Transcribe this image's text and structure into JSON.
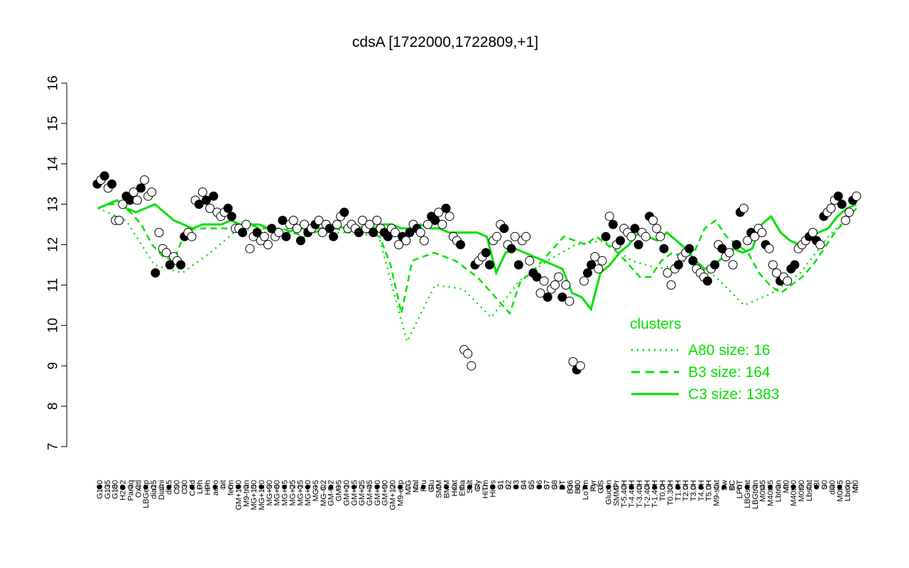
{
  "chart_data": {
    "type": "line",
    "title": "cdsA [1722000,1722809,+1]",
    "xlabel": "",
    "ylabel": "",
    "ylim": [
      7,
      16
    ],
    "yticks": [
      7,
      8,
      9,
      10,
      11,
      12,
      13,
      14,
      15,
      16
    ],
    "grid": false,
    "legend_position": "right",
    "legend": {
      "title": "clusters",
      "entries": [
        {
          "label": "A80 size: 16",
          "style": "dotted"
        },
        {
          "label": "B3 size: 164",
          "style": "dashed"
        },
        {
          "label": "C3 size: 1383",
          "style": "solid"
        }
      ]
    },
    "colors": {
      "cluster_line": "#00e000",
      "axis": "#000000",
      "point_edge": "#000000"
    },
    "category_labels": [
      "G150",
      "G135",
      "G180",
      "H2O2",
      "Paraq",
      "Oxctl",
      "LBGexp",
      "dia15",
      "Diami",
      "dia5",
      "C90",
      "C30",
      "Cold",
      "LPh",
      "HPh",
      "aero",
      "nit",
      "ferm",
      "GM+150",
      "M9-tran",
      "MG+150",
      "MG+120",
      "MG+90",
      "MG+60",
      "MG+45",
      "MG+25",
      "MG+15",
      "MG+10",
      "MG+5",
      "MG-0.2",
      "GM-0.2",
      "GM+5",
      "GM+10",
      "GM+15",
      "GM+25",
      "GM+45",
      "GM+60",
      "GM+90",
      "GM+120",
      "M9-exp",
      "M/G",
      "Mal",
      "Fru",
      "Glu",
      "SMM",
      "BMM",
      "Heat",
      "Etha",
      "Salt",
      "Gly",
      "HiTm",
      "HiOs",
      "S1",
      "S2",
      "S3",
      "S4",
      "S5",
      "S6",
      "S7",
      "S8",
      "BT",
      "B36",
      "B60",
      "LoTm",
      "Pyr",
      "G/S",
      "Glucon",
      "SMMPr",
      "T-5.40H",
      "T-4.40H",
      "T-3.40H",
      "T-2.40H",
      "T-1.40H",
      "T0.0H",
      "T0.30H",
      "T1.0H",
      "T2.0H",
      "T3.0H",
      "T4.0H",
      "T5.0H",
      "M9-stat",
      "Sw",
      "BC",
      "LPhT",
      "LBGstat",
      "LBGtran",
      "M0t45",
      "M40t45",
      "Lbtran",
      "Mt0",
      "M40t90",
      "M0t90",
      "Lbstat",
      "BI",
      "S0",
      "dia0",
      "M0t45",
      "Lbexp",
      "Mt0"
    ],
    "series": [
      {
        "type": "points",
        "values": [
          13.5,
          13.6,
          13.7,
          13.4,
          13.5,
          12.6,
          12.6,
          13.0,
          13.2,
          13.1,
          13.3,
          13.1,
          13.4,
          13.6,
          13.2,
          13.3,
          11.3,
          12.3,
          11.9,
          11.8,
          11.5,
          11.7,
          11.6,
          11.5,
          12.2,
          12.3,
          12.2,
          13.1,
          13.0,
          13.3,
          13.1,
          12.9,
          13.2,
          12.8,
          12.7,
          12.8,
          12.9,
          12.7,
          12.4,
          12.4,
          12.3,
          12.5,
          11.9,
          12.2,
          12.3,
          12.1,
          12.2,
          12.0,
          12.4,
          12.2,
          12.3,
          12.6,
          12.2,
          12.5,
          12.6,
          12.4,
          12.1,
          12.5,
          12.3,
          12.4,
          12.5,
          12.6,
          12.3,
          12.5,
          12.4,
          12.2,
          12.5,
          12.7,
          12.8,
          12.4,
          12.5,
          12.4,
          12.3,
          12.6,
          12.4,
          12.5,
          12.3,
          12.6,
          12.4,
          12.3,
          12.2,
          12.4,
          12.3,
          12.0,
          12.2,
          12.1,
          12.3,
          12.5,
          12.4,
          12.3,
          12.1,
          12.5,
          12.7,
          12.6,
          12.8,
          12.5,
          12.9,
          12.7,
          12.2,
          12.1,
          12.0,
          9.4,
          9.3,
          9.0,
          11.5,
          11.6,
          11.7,
          11.8,
          11.5,
          12.1,
          12.2,
          12.5,
          12.4,
          12.0,
          11.9,
          12.2,
          11.5,
          12.1,
          12.2,
          11.6,
          11.3,
          11.2,
          10.8,
          11.1,
          10.7,
          10.9,
          11.0,
          11.2,
          10.7,
          11.0,
          10.6,
          9.1,
          8.9,
          9.0,
          11.1,
          11.3,
          11.5,
          11.7,
          11.4,
          11.6,
          12.2,
          12.7,
          12.5,
          12.0,
          12.1,
          12.4,
          12.3,
          12.2,
          12.4,
          12.0,
          12.3,
          12.2,
          12.7,
          12.6,
          12.4,
          12.2,
          11.9,
          11.3,
          11.0,
          11.4,
          11.5,
          11.7,
          11.8,
          11.9,
          11.6,
          11.4,
          11.3,
          11.2,
          11.1,
          11.4,
          11.5,
          12.0,
          11.9,
          11.7,
          11.8,
          11.5,
          12.0,
          12.8,
          12.9,
          12.1,
          12.3,
          12.2,
          12.4,
          12.3,
          12.0,
          11.9,
          11.5,
          11.3,
          11.1,
          11.2,
          11.1,
          11.4,
          11.5,
          11.9,
          12.0,
          12.1,
          12.2,
          12.3,
          12.1,
          12.0,
          12.7,
          12.8,
          12.9,
          13.1,
          13.2,
          13.0,
          12.6,
          12.8,
          13.1,
          13.2
        ]
      },
      {
        "name": "C3",
        "type": "line",
        "style": "solid",
        "values": [
          12.9,
          13.0,
          13.1,
          12.9,
          12.8,
          12.9,
          13.0,
          12.8,
          12.6,
          12.5,
          12.4,
          12.5,
          12.5,
          12.5,
          12.6,
          12.5,
          12.5,
          12.5,
          12.4,
          12.2,
          12.3,
          12.4,
          12.4,
          12.4,
          12.4,
          12.5,
          12.4,
          12.5,
          12.4,
          12.4,
          12.5,
          12.5,
          12.4,
          12.4,
          12.5,
          12.4,
          12.4,
          12.3,
          12.3,
          12.3,
          12.3,
          12.2,
          11.3,
          11.8,
          11.9,
          11.8,
          11.7,
          11.6,
          11.5,
          11.4,
          10.8,
          10.7,
          10.4,
          11.3,
          11.5,
          11.8,
          12.0,
          12.3,
          12.2,
          12.1,
          12.3,
          12.1,
          11.9,
          11.6,
          11.4,
          11.5,
          11.7,
          11.9,
          11.8,
          11.9,
          12.5,
          12.7,
          12.3,
          12.1,
          12.0,
          12.2,
          12.3,
          12.4,
          12.7,
          12.9,
          13.0
        ]
      },
      {
        "name": "B3",
        "type": "line",
        "style": "dashed",
        "values": [
          12.9,
          13.0,
          13.0,
          12.8,
          12.5,
          12.0,
          11.7,
          11.6,
          12.3,
          12.4,
          12.4,
          12.4,
          12.4,
          12.4,
          12.5,
          12.4,
          12.4,
          12.4,
          12.3,
          12.2,
          12.3,
          12.4,
          12.4,
          12.3,
          12.3,
          12.3,
          12.2,
          11.5,
          10.3,
          11.6,
          11.7,
          11.8,
          11.7,
          11.6,
          11.4,
          11.2,
          10.9,
          10.6,
          10.3,
          11.1,
          11.3,
          11.6,
          11.9,
          12.2,
          12.1,
          12.0,
          12.2,
          12.0,
          11.8,
          11.5,
          11.2,
          11.2,
          11.6,
          11.8,
          11.7,
          11.8,
          12.4,
          12.6,
          12.2,
          12.0,
          11.8,
          11.3,
          11.0,
          10.8,
          11.0,
          11.2,
          11.5,
          11.9,
          12.3,
          12.6,
          12.9
        ]
      },
      {
        "name": "A80",
        "type": "line",
        "style": "dotted",
        "values": [
          12.9,
          12.6,
          11.5,
          11.3,
          11.8,
          12.4,
          12.3,
          12.4,
          12.3,
          12.3,
          12.2,
          9.6,
          11.0,
          10.9,
          10.2,
          11.1,
          11.6,
          12.0,
          12.1,
          11.6,
          11.4,
          11.6,
          11.2,
          10.5,
          10.8,
          11.3,
          12.2,
          12.9
        ]
      }
    ]
  }
}
